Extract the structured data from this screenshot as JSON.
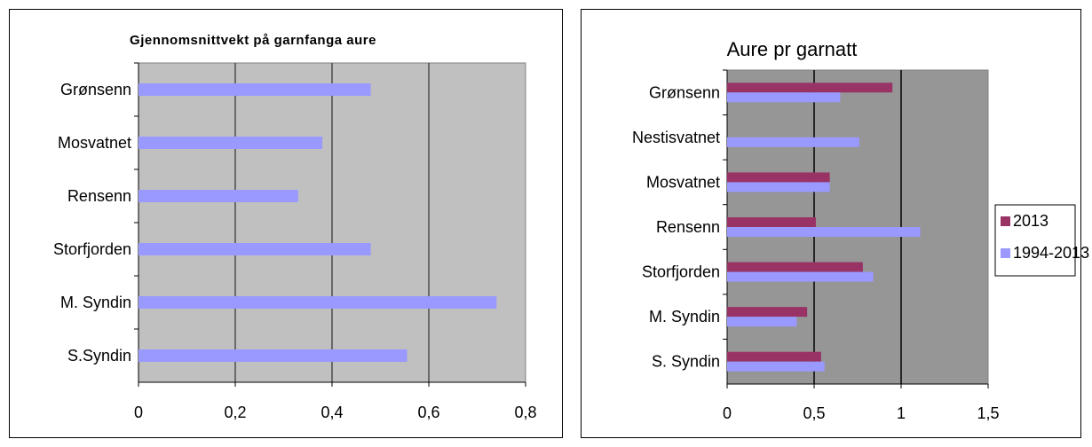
{
  "chart_data": [
    {
      "type": "bar",
      "orientation": "horizontal",
      "title": "Gjennomsnittvekt på garnfanga aure",
      "xlabel": "",
      "ylabel": "",
      "categories": [
        "Grønsenn",
        "Mosvatnet",
        "Rensenn",
        "Storfjorden",
        "M. Syndin",
        "S.Syndin"
      ],
      "series": [
        {
          "values": [
            0.48,
            0.38,
            0.33,
            0.48,
            0.74,
            0.555
          ],
          "color": "#9999ff"
        }
      ],
      "xlim": [
        0,
        0.8
      ],
      "ticks": [
        "0",
        "0,2",
        "0,4",
        "0,6",
        "0,8"
      ],
      "tick_values": [
        0,
        0.2,
        0.4,
        0.6,
        0.8
      ],
      "grid": true,
      "plot_background": "#c0c0c0"
    },
    {
      "type": "bar",
      "orientation": "horizontal",
      "title": "Aure pr garnatt",
      "xlabel": "",
      "ylabel": "",
      "categories": [
        "Grønsenn",
        "Nestisvatnet",
        "Mosvatnet",
        "Rensenn",
        "Storfjorden",
        "M. Syndin",
        "S. Syndin"
      ],
      "series": [
        {
          "name": "2013",
          "values": [
            0.95,
            null,
            0.59,
            0.51,
            0.78,
            0.46,
            0.54
          ],
          "color": "#993366"
        },
        {
          "name": "1994-2013",
          "values": [
            0.65,
            0.76,
            0.59,
            1.11,
            0.84,
            0.4,
            0.56
          ],
          "color": "#9999ff"
        }
      ],
      "xlim": [
        0,
        1.5
      ],
      "ticks": [
        "0",
        "0,5",
        "1",
        "1,5"
      ],
      "tick_values": [
        0,
        0.5,
        1,
        1.5
      ],
      "grid": true,
      "plot_background": "#969696",
      "legend": "right"
    }
  ]
}
